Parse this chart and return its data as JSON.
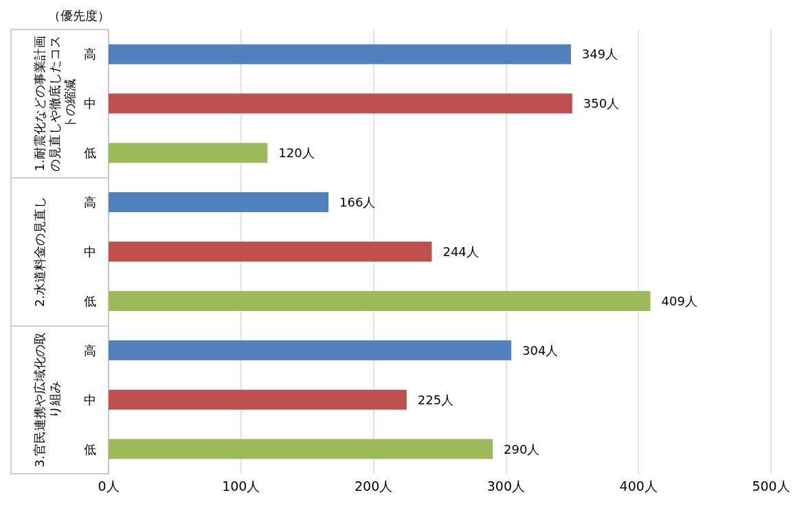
{
  "chart_data": {
    "type": "bar",
    "orientation": "horizontal",
    "ylabel": "（優先度）",
    "categories": [
      "高",
      "中",
      "低",
      "高",
      "中",
      "低",
      "高",
      "中",
      "低"
    ],
    "values": [
      349,
      350,
      120,
      166,
      244,
      409,
      304,
      225,
      290
    ],
    "colors": [
      "#4f81bd",
      "#c0504d",
      "#9bbb59",
      "#4f81bd",
      "#c0504d",
      "#9bbb59",
      "#4f81bd",
      "#c0504d",
      "#9bbb59"
    ],
    "value_labels": [
      "349人",
      "350人",
      "120人",
      "166人",
      "244人",
      "409人",
      "304人",
      "225人",
      "290人"
    ],
    "annotations": [
      "1.耐震化などの事業計画の見直しや徹底したコストの縮減",
      "2.水道料金の見直し",
      "3.官民連携や広域化の取り組み"
    ],
    "xlim": [
      0,
      500
    ],
    "xticks": [
      {
        "value": 0,
        "label": "0人"
      },
      {
        "value": 100,
        "label": "100人"
      },
      {
        "value": 200,
        "label": "200人"
      },
      {
        "value": 300,
        "label": "300人"
      },
      {
        "value": 400,
        "label": "400人"
      },
      {
        "value": 500,
        "label": "500人"
      }
    ],
    "grid": "x"
  }
}
